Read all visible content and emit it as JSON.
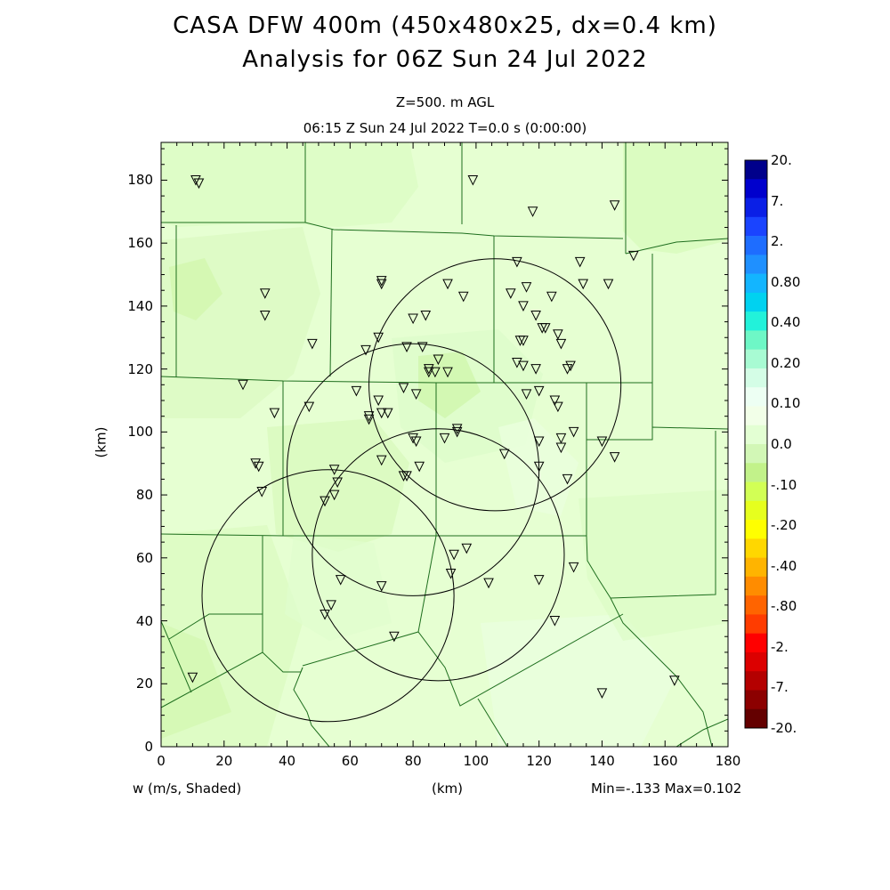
{
  "title_line1": "CASA DFW 400m (450x480x25, dx=0.4 km)",
  "title_line2": "Analysis for 06Z Sun 24 Jul 2022",
  "subtitle_line1": "Z=500. m AGL",
  "subtitle_line2": "06:15 Z Sun 24 Jul 2022   T=0.0 s (0:00:00)",
  "x_axis": {
    "unit_label": "(km)",
    "min": 0,
    "max": 180,
    "ticks": [
      "0",
      "20",
      "40",
      "60",
      "80",
      "100",
      "120",
      "140",
      "160",
      "180"
    ]
  },
  "y_axis": {
    "unit_label": "(km)",
    "min": 0,
    "max": 192,
    "ticks": [
      "0",
      "20",
      "40",
      "60",
      "80",
      "100",
      "120",
      "140",
      "160",
      "180"
    ]
  },
  "field_label": "w (m/s, Shaded)",
  "minmax_label": "Min=-.133 Max=0.102",
  "colorbar": {
    "labels": [
      "20.",
      "7.",
      "2.",
      "0.80",
      "0.40",
      "0.20",
      "0.10",
      "0.0",
      "-.10",
      "-.20",
      "-.40",
      "-.80",
      "-2.",
      "-7.",
      "-20."
    ],
    "colors": [
      "#00008b",
      "#0000cd",
      "#0a1fe6",
      "#1a44ff",
      "#1e6dff",
      "#1f90ff",
      "#13b5ff",
      "#00d2f0",
      "#22f2da",
      "#6ef7c6",
      "#a8fbd3",
      "#d4fde6",
      "#edfff3",
      "#f2ffe8",
      "#e3ffd3",
      "#d2f7b6",
      "#c2f28a",
      "#d2ff55",
      "#e6ff1e",
      "#ffff00",
      "#ffd700",
      "#ffb400",
      "#ff8c00",
      "#ff6400",
      "#ff3c00",
      "#ff0000",
      "#dc0000",
      "#b40000",
      "#8c0000",
      "#640000"
    ]
  },
  "radars_km": [
    {
      "x": 106,
      "y": 115,
      "r": 40
    },
    {
      "x": 80,
      "y": 88,
      "r": 40
    },
    {
      "x": 88,
      "y": 61,
      "r": 40
    },
    {
      "x": 53,
      "y": 48,
      "r": 40
    }
  ],
  "stations_km": [
    [
      11,
      180
    ],
    [
      12,
      179
    ],
    [
      99,
      180
    ],
    [
      118,
      170
    ],
    [
      144,
      172
    ],
    [
      150,
      156
    ],
    [
      113,
      154
    ],
    [
      133,
      154
    ],
    [
      70,
      148
    ],
    [
      70,
      147
    ],
    [
      33,
      144
    ],
    [
      91,
      147
    ],
    [
      116,
      146
    ],
    [
      134,
      147
    ],
    [
      142,
      147
    ],
    [
      111,
      144
    ],
    [
      96,
      143
    ],
    [
      124,
      143
    ],
    [
      115,
      140
    ],
    [
      119,
      137
    ],
    [
      33,
      137
    ],
    [
      80,
      136
    ],
    [
      84,
      137
    ],
    [
      121,
      133
    ],
    [
      122,
      133
    ],
    [
      126,
      131
    ],
    [
      69,
      130
    ],
    [
      48,
      128
    ],
    [
      65,
      126
    ],
    [
      78,
      127
    ],
    [
      83,
      127
    ],
    [
      114,
      129
    ],
    [
      115,
      129
    ],
    [
      127,
      128
    ],
    [
      88,
      123
    ],
    [
      113,
      122
    ],
    [
      130,
      121
    ],
    [
      129,
      120
    ],
    [
      85,
      120
    ],
    [
      87,
      119
    ],
    [
      85,
      119
    ],
    [
      91,
      119
    ],
    [
      115,
      121
    ],
    [
      119,
      120
    ],
    [
      26,
      115
    ],
    [
      77,
      114
    ],
    [
      62,
      113
    ],
    [
      120,
      113
    ],
    [
      116,
      112
    ],
    [
      125,
      110
    ],
    [
      81,
      112
    ],
    [
      69,
      110
    ],
    [
      36,
      106
    ],
    [
      126,
      108
    ],
    [
      47,
      108
    ],
    [
      70,
      106
    ],
    [
      72,
      106
    ],
    [
      66,
      105
    ],
    [
      66,
      104
    ],
    [
      94,
      101
    ],
    [
      94,
      100
    ],
    [
      90,
      98
    ],
    [
      80,
      98
    ],
    [
      81,
      97
    ],
    [
      131,
      100
    ],
    [
      127,
      98
    ],
    [
      140,
      97
    ],
    [
      120,
      97
    ],
    [
      127,
      95
    ],
    [
      109,
      93
    ],
    [
      144,
      92
    ],
    [
      70,
      91
    ],
    [
      30,
      90
    ],
    [
      31,
      89
    ],
    [
      120,
      89
    ],
    [
      82,
      89
    ],
    [
      78,
      86
    ],
    [
      77,
      86
    ],
    [
      129,
      85
    ],
    [
      55,
      88
    ],
    [
      56,
      84
    ],
    [
      32,
      81
    ],
    [
      55,
      80
    ],
    [
      52,
      78
    ],
    [
      97,
      63
    ],
    [
      93,
      61
    ],
    [
      131,
      57
    ],
    [
      92,
      55
    ],
    [
      57,
      53
    ],
    [
      120,
      53
    ],
    [
      104,
      52
    ],
    [
      70,
      51
    ],
    [
      54,
      45
    ],
    [
      52,
      42
    ],
    [
      125,
      40
    ],
    [
      74,
      35
    ],
    [
      10,
      22
    ],
    [
      140,
      17
    ],
    [
      163,
      21
    ]
  ],
  "colors": {
    "shade_base": "#e6ffd2",
    "boundary": "#1e6e1e",
    "radar_ring": "#000000"
  }
}
